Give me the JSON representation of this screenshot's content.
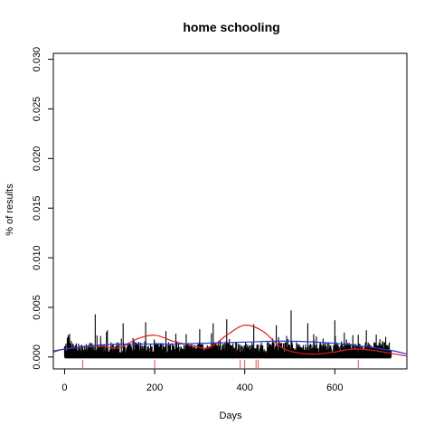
{
  "chart_data": {
    "type": "line",
    "title": "home schooling",
    "xlabel": "Days",
    "ylabel": "% of results",
    "xlim": [
      -25,
      760
    ],
    "ylim": [
      -0.0012,
      0.0306
    ],
    "xticks": [
      0,
      200,
      400,
      600
    ],
    "yticks": [
      0.0,
      0.005,
      0.01,
      0.015,
      0.02,
      0.025,
      0.03
    ],
    "ytick_labels": [
      "0.000",
      "0.005",
      "0.010",
      "0.015",
      "0.020",
      "0.025",
      "0.030"
    ],
    "grid": false,
    "colors": {
      "data": "#000000",
      "smooth_red": "#e41a1c",
      "smooth_blue": "#1f3bd8",
      "rug": "#e41a1c"
    },
    "series": [
      {
        "style": "spikes",
        "x_start": 0,
        "x_end": 725,
        "peaks": [
          {
            "x": 8,
            "y": 0.0022
          },
          {
            "x": 68,
            "y": 0.0043
          },
          {
            "x": 95,
            "y": 0.0027
          },
          {
            "x": 130,
            "y": 0.0034
          },
          {
            "x": 180,
            "y": 0.0035
          },
          {
            "x": 225,
            "y": 0.0026
          },
          {
            "x": 270,
            "y": 0.0023
          },
          {
            "x": 300,
            "y": 0.0028
          },
          {
            "x": 330,
            "y": 0.0034
          },
          {
            "x": 360,
            "y": 0.0038
          },
          {
            "x": 420,
            "y": 0.0033
          },
          {
            "x": 470,
            "y": 0.0032
          },
          {
            "x": 503,
            "y": 0.0047
          },
          {
            "x": 540,
            "y": 0.0034
          },
          {
            "x": 600,
            "y": 0.0037
          },
          {
            "x": 640,
            "y": 0.0022
          },
          {
            "x": 670,
            "y": 0.0027
          },
          {
            "x": 700,
            "y": 0.0018
          }
        ]
      },
      {
        "style": "smooth",
        "color": "red",
        "x": [
          -25,
          0,
          40,
          80,
          120,
          160,
          200,
          240,
          280,
          320,
          360,
          400,
          440,
          480,
          520,
          560,
          600,
          640,
          680,
          720,
          760
        ],
        "y": [
          0.0005,
          0.0008,
          0.001,
          0.0011,
          0.0009,
          0.0018,
          0.0022,
          0.0016,
          0.0012,
          0.0009,
          0.0022,
          0.0032,
          0.0026,
          0.001,
          0.0004,
          0.0003,
          0.0005,
          0.0008,
          0.0007,
          0.0004,
          0.0001
        ]
      },
      {
        "style": "smooth",
        "color": "blue",
        "x": [
          -25,
          0,
          80,
          160,
          240,
          320,
          400,
          480,
          560,
          640,
          720,
          760
        ],
        "y": [
          0.0006,
          0.0008,
          0.0012,
          0.0013,
          0.0013,
          0.0014,
          0.0015,
          0.0016,
          0.0015,
          0.0012,
          0.0007,
          0.0003
        ]
      }
    ],
    "rug_x": [
      40,
      200,
      390,
      400,
      425,
      430,
      652
    ]
  }
}
